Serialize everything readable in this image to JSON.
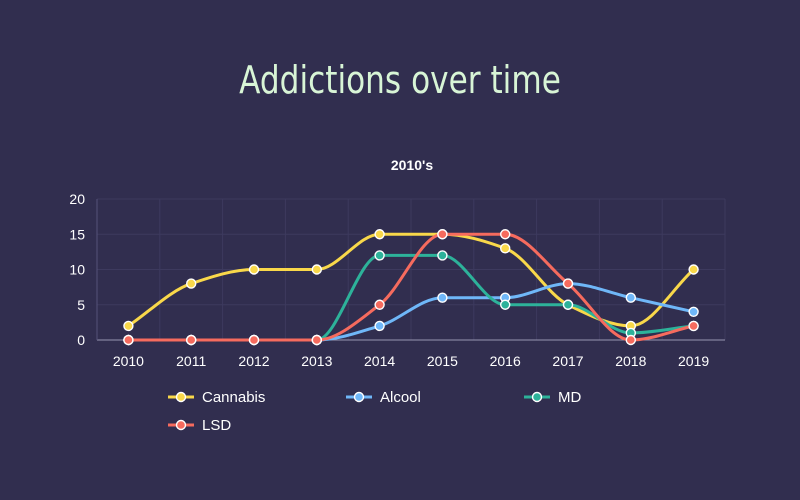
{
  "page": {
    "title": "Addictions over time"
  },
  "chart_data": {
    "type": "line",
    "subtitle": "2010's",
    "x": [
      "2010",
      "2011",
      "2012",
      "2013",
      "2014",
      "2015",
      "2016",
      "2017",
      "2018",
      "2019"
    ],
    "ylim": [
      0,
      20
    ],
    "yticks": [
      0,
      5,
      10,
      15,
      20
    ],
    "grid": true,
    "legend_position": "bottom",
    "series": [
      {
        "name": "Cannabis",
        "color": "#f9d84a",
        "values": [
          2,
          8,
          10,
          10,
          15,
          15,
          13,
          5,
          2,
          10
        ]
      },
      {
        "name": "Alcool",
        "color": "#6fb7f8",
        "values": [
          0,
          0,
          0,
          0,
          2,
          6,
          6,
          8,
          6,
          4
        ]
      },
      {
        "name": "MD",
        "color": "#2db29a",
        "values": [
          0,
          0,
          0,
          0,
          12,
          12,
          5,
          5,
          1,
          2
        ]
      },
      {
        "name": "LSD",
        "color": "#f66b5e",
        "values": [
          0,
          0,
          0,
          0,
          5,
          15,
          15,
          8,
          0,
          2
        ]
      }
    ]
  }
}
